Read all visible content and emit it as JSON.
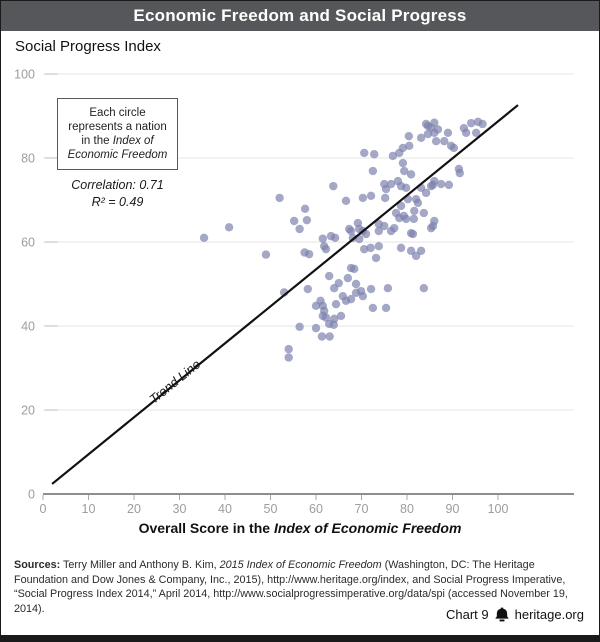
{
  "header": {
    "title": "Economic Freedom and Social Progress",
    "bar_color": "#56575a"
  },
  "annotation": {
    "line1": "Each circle",
    "line2": "represents a nation",
    "line3_plain": "in the ",
    "line3_italic": "Index of",
    "line4_italic": "Economic Freedom"
  },
  "sources": {
    "label": "Sources:",
    "part1": " Terry Miller and Anthony B. Kim, ",
    "italic1": "2015 Index of Economic Freedom",
    "part2": " (Washington, DC: The Heritage Foundation and Dow Jones & Company, Inc., 2015), http://www.heritage.org/index, and Social Progress Imperative, “Social Progress Index 2014,” April 2014, http://www.socialprogressimperative.org/data/spi (accessed November 19, 2014)."
  },
  "footer": {
    "chart_label": "Chart 9",
    "site": "heritage.org",
    "bell_icon": "heritage-bell"
  },
  "chart_data": {
    "type": "scatter",
    "title": "Economic Freedom and Social Progress",
    "ylabel": "Social Progress Index",
    "xlabel": "Overall Score in the Index of Economic Freedom",
    "xlabel_parts": {
      "plain": "Overall Score in the ",
      "italic": "Index of Economic Freedom"
    },
    "xlim": [
      0,
      100
    ],
    "ylim": [
      0,
      100
    ],
    "x_ticks": [
      0,
      10,
      20,
      30,
      40,
      50,
      60,
      70,
      80,
      90,
      100
    ],
    "y_ticks": [
      0,
      20,
      40,
      60,
      80,
      100
    ],
    "grid": "horizontal",
    "legend": false,
    "correlation_label": "Correlation: 0.71",
    "r_squared_label": "R² = 0.49",
    "point_color": "#7d82ad",
    "trend_line": {
      "label": "Trend Line",
      "x1": 2.0,
      "y1": 2.4,
      "x2": 104.4,
      "y2": 92.6
    },
    "points": [
      [
        35.4,
        61
      ],
      [
        40.9,
        63.5
      ],
      [
        49,
        57
      ],
      [
        52,
        70.5
      ],
      [
        53,
        48
      ],
      [
        54,
        34.5
      ],
      [
        54,
        32.5
      ],
      [
        55.2,
        65
      ],
      [
        56.4,
        39.8
      ],
      [
        56.4,
        63.1
      ],
      [
        57.6,
        67.9
      ],
      [
        58,
        65.2
      ],
      [
        57.5,
        57.5
      ],
      [
        58.5,
        57.1
      ],
      [
        58.2,
        48.8
      ],
      [
        60,
        39.5
      ],
      [
        60,
        44.8
      ],
      [
        61,
        46
      ],
      [
        61.3,
        37.5
      ],
      [
        61.5,
        60.8
      ],
      [
        61.8,
        59
      ],
      [
        61.8,
        43.6
      ],
      [
        61.5,
        44.8
      ],
      [
        61.5,
        42.4
      ],
      [
        62.2,
        42
      ],
      [
        62.2,
        58.3
      ],
      [
        62.9,
        51.9
      ],
      [
        62.9,
        40.5
      ],
      [
        63,
        37.5
      ],
      [
        63.9,
        40.3
      ],
      [
        63.3,
        61.4
      ],
      [
        63.8,
        73.3
      ],
      [
        64.2,
        61
      ],
      [
        64,
        49
      ],
      [
        64,
        41.7
      ],
      [
        64.4,
        45.2
      ],
      [
        65,
        50.2
      ],
      [
        65.5,
        42.4
      ],
      [
        65.9,
        47.1
      ],
      [
        66.6,
        46
      ],
      [
        66.6,
        69.8
      ],
      [
        67,
        51.4
      ],
      [
        67.3,
        63.1
      ],
      [
        67.7,
        53.8
      ],
      [
        67.7,
        62.6
      ],
      [
        67.7,
        46.4
      ],
      [
        68.4,
        53.6
      ],
      [
        68.8,
        50
      ],
      [
        68.8,
        47.9
      ],
      [
        68.1,
        61
      ],
      [
        69.5,
        60.7
      ],
      [
        69.2,
        64.5
      ],
      [
        69.5,
        63.1
      ],
      [
        69.9,
        48.3
      ],
      [
        70.3,
        62.6
      ],
      [
        70.3,
        47.1
      ],
      [
        70.3,
        70.5
      ],
      [
        70.6,
        81.2
      ],
      [
        70.6,
        58.3
      ],
      [
        71,
        61.9
      ],
      [
        72,
        58.6
      ],
      [
        72.1,
        71
      ],
      [
        72.1,
        48.8
      ],
      [
        72.5,
        76.9
      ],
      [
        72.5,
        44.3
      ],
      [
        72.8,
        80.9
      ],
      [
        73.2,
        56.2
      ],
      [
        73.8,
        59
      ],
      [
        73.8,
        64.3
      ],
      [
        73.8,
        62.6
      ],
      [
        75,
        73.8
      ],
      [
        75,
        63.8
      ],
      [
        75.2,
        70.5
      ],
      [
        75.4,
        72.6
      ],
      [
        75.4,
        44.3
      ],
      [
        75.8,
        49
      ],
      [
        76.5,
        73.8
      ],
      [
        76.5,
        62.6
      ],
      [
        76.9,
        80.5
      ],
      [
        77.2,
        63.3
      ],
      [
        77.6,
        66.9
      ],
      [
        78,
        74.5
      ],
      [
        78.3,
        65.7
      ],
      [
        78.3,
        81.2
      ],
      [
        78.7,
        73.3
      ],
      [
        78.7,
        68.6
      ],
      [
        78.7,
        58.6
      ],
      [
        79.1,
        82.4
      ],
      [
        79.1,
        78.8
      ],
      [
        79.3,
        66.2
      ],
      [
        79.4,
        76.9
      ],
      [
        79.8,
        72.9
      ],
      [
        79.8,
        65.5
      ],
      [
        80.2,
        70.2
      ],
      [
        80.4,
        85.2
      ],
      [
        80.5,
        82.9
      ],
      [
        80.9,
        76.1
      ],
      [
        80.9,
        62.1
      ],
      [
        80.9,
        57.9
      ],
      [
        81.3,
        61.9
      ],
      [
        81.5,
        65.5
      ],
      [
        81.6,
        67.4
      ],
      [
        82,
        70.2
      ],
      [
        82,
        56.7
      ],
      [
        82.4,
        69.3
      ],
      [
        83.1,
        84.8
      ],
      [
        83.1,
        72.9
      ],
      [
        83.1,
        57.9
      ],
      [
        83.7,
        66.9
      ],
      [
        83.7,
        49
      ],
      [
        84.2,
        88.1
      ],
      [
        84.2,
        71.7
      ],
      [
        84.6,
        87.6
      ],
      [
        84.6,
        85.7
      ],
      [
        85.3,
        87.2
      ],
      [
        85.3,
        73.3
      ],
      [
        85.3,
        63.3
      ],
      [
        85.7,
        63.8
      ],
      [
        85.7,
        73.6
      ],
      [
        86,
        88.4
      ],
      [
        86,
        86
      ],
      [
        86,
        74.5
      ],
      [
        86,
        65
      ],
      [
        86.4,
        84
      ],
      [
        86.8,
        86.8
      ],
      [
        87.5,
        73.8
      ],
      [
        88.2,
        84
      ],
      [
        89,
        86
      ],
      [
        89.2,
        73.6
      ],
      [
        89.7,
        82.9
      ],
      [
        90.3,
        82.4
      ],
      [
        91.4,
        77.4
      ],
      [
        91.6,
        76.4
      ],
      [
        92.5,
        87.1
      ],
      [
        93,
        86
      ],
      [
        94.1,
        88.3
      ],
      [
        95.2,
        86
      ],
      [
        95.6,
        88.6
      ],
      [
        96.6,
        88.1
      ]
    ]
  }
}
